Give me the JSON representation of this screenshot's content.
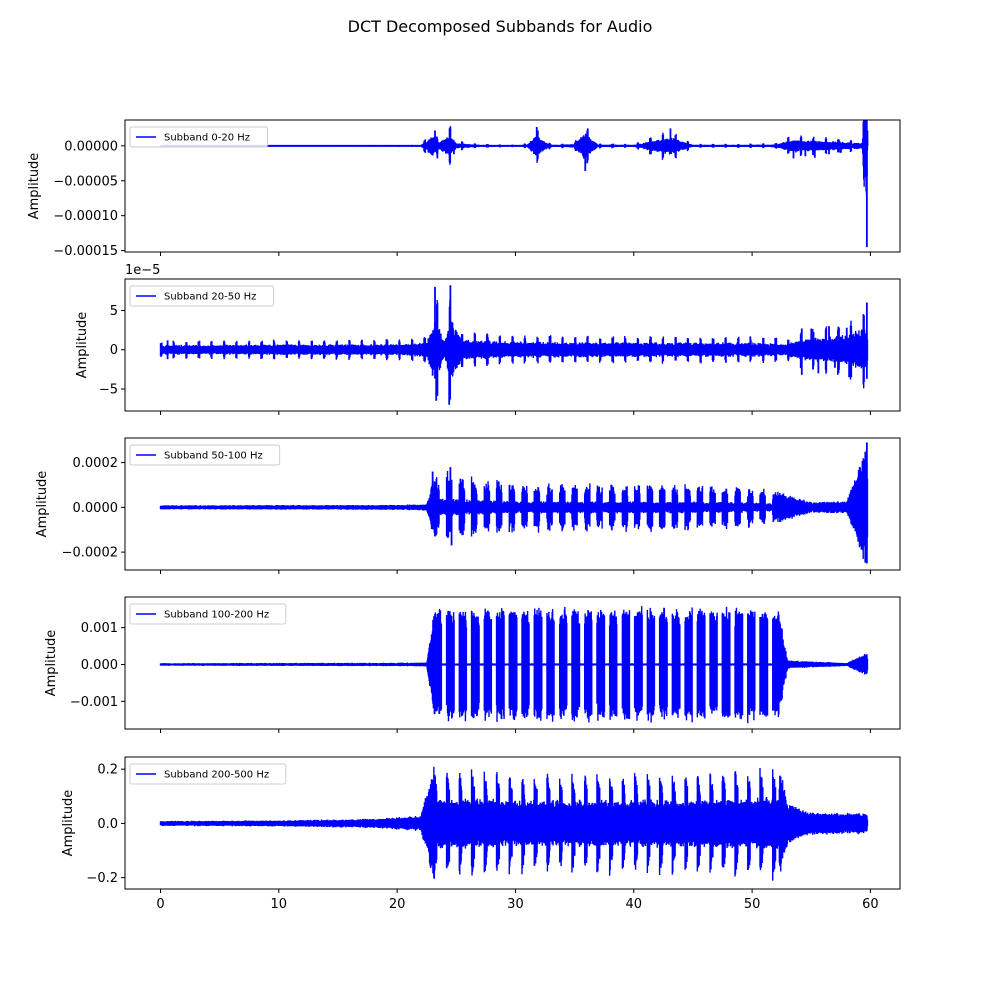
{
  "figure": {
    "title": "DCT Decomposed Subbands for Audio"
  },
  "chart_data": [
    {
      "type": "line",
      "series_name": "Subband 0-20 Hz",
      "color": "#0000ff",
      "ylabel": "Amplitude",
      "xlim": [
        -3,
        62.5
      ],
      "ylim": [
        -0.000152,
        3.7e-05
      ],
      "offset_text": "",
      "yticks": [
        0,
        -5e-05,
        -0.0001,
        -0.00015
      ],
      "ytick_labels": [
        "0.00000",
        "−0.00005",
        "−0.00010",
        "−0.00015"
      ],
      "envelope": [
        [
          0,
          0.5
        ],
        [
          0.6,
          4
        ],
        [
          1.2,
          1
        ],
        [
          5,
          1
        ],
        [
          9,
          1
        ],
        [
          13,
          1
        ],
        [
          17,
          1.2
        ],
        [
          22,
          1.5
        ],
        [
          23,
          28
        ],
        [
          23.5,
          10
        ],
        [
          24.4,
          30
        ],
        [
          25,
          8
        ],
        [
          27,
          3
        ],
        [
          30,
          2
        ],
        [
          31,
          4
        ],
        [
          31.7,
          28
        ],
        [
          33,
          3
        ],
        [
          35,
          5
        ],
        [
          35.8,
          36
        ],
        [
          37,
          4
        ],
        [
          40,
          3
        ],
        [
          43,
          25
        ],
        [
          45,
          3
        ],
        [
          48,
          3
        ],
        [
          52,
          4
        ],
        [
          53.5,
          18
        ],
        [
          55,
          15
        ],
        [
          57,
          12
        ],
        [
          58,
          10
        ],
        [
          59.3,
          8
        ],
        [
          59.7,
          145
        ],
        [
          59.75,
          22
        ]
      ],
      "spikes": [
        [
          23.2,
          22
        ],
        [
          23.4,
          -18
        ],
        [
          24.5,
          28
        ],
        [
          24.8,
          -12
        ],
        [
          31.8,
          27
        ],
        [
          35.9,
          -36
        ],
        [
          35.4,
          -8
        ],
        [
          43.1,
          25
        ],
        [
          53.5,
          -18
        ],
        [
          54.5,
          -15
        ],
        [
          55.3,
          -17
        ],
        [
          56.5,
          -12
        ],
        [
          57.5,
          -10
        ],
        [
          59.7,
          -145
        ],
        [
          59.75,
          22
        ]
      ],
      "spike_unit": 1e-06
    },
    {
      "type": "line",
      "series_name": "Subband 20-50 Hz",
      "color": "#0000ff",
      "ylabel": "Amplitude",
      "xlim": [
        -3,
        62.5
      ],
      "ylim": [
        -7.8,
        9.0
      ],
      "offset_text": "1e−5",
      "yticks": [
        5,
        0,
        -5
      ],
      "ytick_labels": [
        "5",
        "0",
        "−5"
      ],
      "envelope": [
        [
          0,
          1
        ],
        [
          0.5,
          1.2
        ],
        [
          20,
          1.4
        ],
        [
          22.5,
          1.8
        ],
        [
          23.2,
          8
        ],
        [
          24,
          2
        ],
        [
          24.5,
          8.2
        ],
        [
          25.5,
          2.5
        ],
        [
          30,
          2
        ],
        [
          40,
          1.8
        ],
        [
          50,
          1.8
        ],
        [
          53,
          1.5
        ],
        [
          54,
          2.5
        ],
        [
          56,
          3
        ],
        [
          58,
          3.5
        ],
        [
          59.7,
          6
        ],
        [
          59.8,
          1
        ]
      ],
      "spikes": [
        [
          23.2,
          8
        ],
        [
          23.3,
          -6.5
        ],
        [
          24.5,
          8.2
        ],
        [
          24.4,
          -7
        ],
        [
          23.0,
          -3.3
        ],
        [
          54.2,
          2.7
        ],
        [
          54.2,
          -3.2
        ],
        [
          55.0,
          2.7
        ],
        [
          55.6,
          -3.0
        ],
        [
          56.5,
          3
        ],
        [
          57.0,
          -2.3
        ],
        [
          58.0,
          2.8
        ],
        [
          58.2,
          -3.5
        ],
        [
          59.7,
          6
        ],
        [
          59.7,
          -3.7
        ],
        [
          0.6,
          1.2
        ],
        [
          0.6,
          -1.2
        ]
      ],
      "spike_unit": 1
    },
    {
      "type": "line",
      "series_name": "Subband 50-100 Hz",
      "color": "#0000ff",
      "ylabel": "Amplitude",
      "xlim": [
        -3,
        62.5
      ],
      "ylim": [
        -0.00028,
        0.00031
      ],
      "offset_text": "",
      "yticks": [
        0.0002,
        0,
        -0.0002
      ],
      "ytick_labels": [
        "0.0002",
        "0.0000",
        "−0.0002"
      ],
      "envelope": [
        [
          0,
          10
        ],
        [
          20,
          12
        ],
        [
          22.5,
          15
        ],
        [
          23.2,
          160
        ],
        [
          24.5,
          180
        ],
        [
          26,
          150
        ],
        [
          30,
          120
        ],
        [
          35,
          110
        ],
        [
          40,
          115
        ],
        [
          45,
          110
        ],
        [
          50,
          100
        ],
        [
          53,
          60
        ],
        [
          55,
          25
        ],
        [
          58,
          30
        ],
        [
          59.7,
          290
        ],
        [
          59.8,
          10
        ]
      ],
      "spikes": [
        [
          23.0,
          160
        ],
        [
          23.2,
          -130
        ],
        [
          24.5,
          180
        ],
        [
          24.6,
          -170
        ],
        [
          59.7,
          290
        ],
        [
          59.7,
          -250
        ]
      ],
      "spike_unit": 1e-06
    },
    {
      "type": "line",
      "series_name": "Subband 100-200 Hz",
      "color": "#0000ff",
      "ylabel": "Amplitude",
      "xlim": [
        -3,
        62.5
      ],
      "ylim": [
        -0.00175,
        0.00183
      ],
      "offset_text": "",
      "yticks": [
        0.001,
        0,
        -0.001
      ],
      "ytick_labels": [
        "0.001",
        "0.000",
        "−0.001"
      ],
      "envelope": [
        [
          0,
          0.04
        ],
        [
          20,
          0.05
        ],
        [
          22.5,
          0.06
        ],
        [
          23.1,
          1.55
        ],
        [
          30,
          1.6
        ],
        [
          40,
          1.6
        ],
        [
          50,
          1.6
        ],
        [
          52.3,
          1.5
        ],
        [
          53,
          0.12
        ],
        [
          58,
          0.05
        ],
        [
          59.7,
          0.35
        ],
        [
          59.8,
          0.02
        ]
      ],
      "spikes": [],
      "spike_unit": 0.001
    },
    {
      "type": "line",
      "series_name": "Subband 200-500 Hz",
      "color": "#0000ff",
      "ylabel": "Amplitude",
      "xlim": [
        -3,
        62.5
      ],
      "ylim": [
        -0.242,
        0.245
      ],
      "offset_text": "",
      "yticks": [
        0.2,
        0,
        -0.2
      ],
      "ytick_labels": [
        "0.2",
        "0.0",
        "−0.2"
      ],
      "xticks": [
        0,
        10,
        20,
        30,
        40,
        50,
        60
      ],
      "xtick_labels": [
        "0",
        "10",
        "20",
        "30",
        "40",
        "50",
        "60"
      ],
      "envelope": [
        [
          0,
          0.01
        ],
        [
          10,
          0.012
        ],
        [
          18,
          0.018
        ],
        [
          22,
          0.03
        ],
        [
          23.1,
          0.22
        ],
        [
          30,
          0.2
        ],
        [
          40,
          0.2
        ],
        [
          50,
          0.21
        ],
        [
          52.3,
          0.23
        ],
        [
          53,
          0.08
        ],
        [
          55,
          0.045
        ],
        [
          59.7,
          0.04
        ],
        [
          59.8,
          0.0
        ]
      ],
      "spikes": [],
      "spike_unit": 1
    }
  ],
  "shared": {
    "bursts_start": 23.1,
    "bursts_end": 52.3,
    "burst_period": 1.06,
    "signal_end": 59.75
  }
}
